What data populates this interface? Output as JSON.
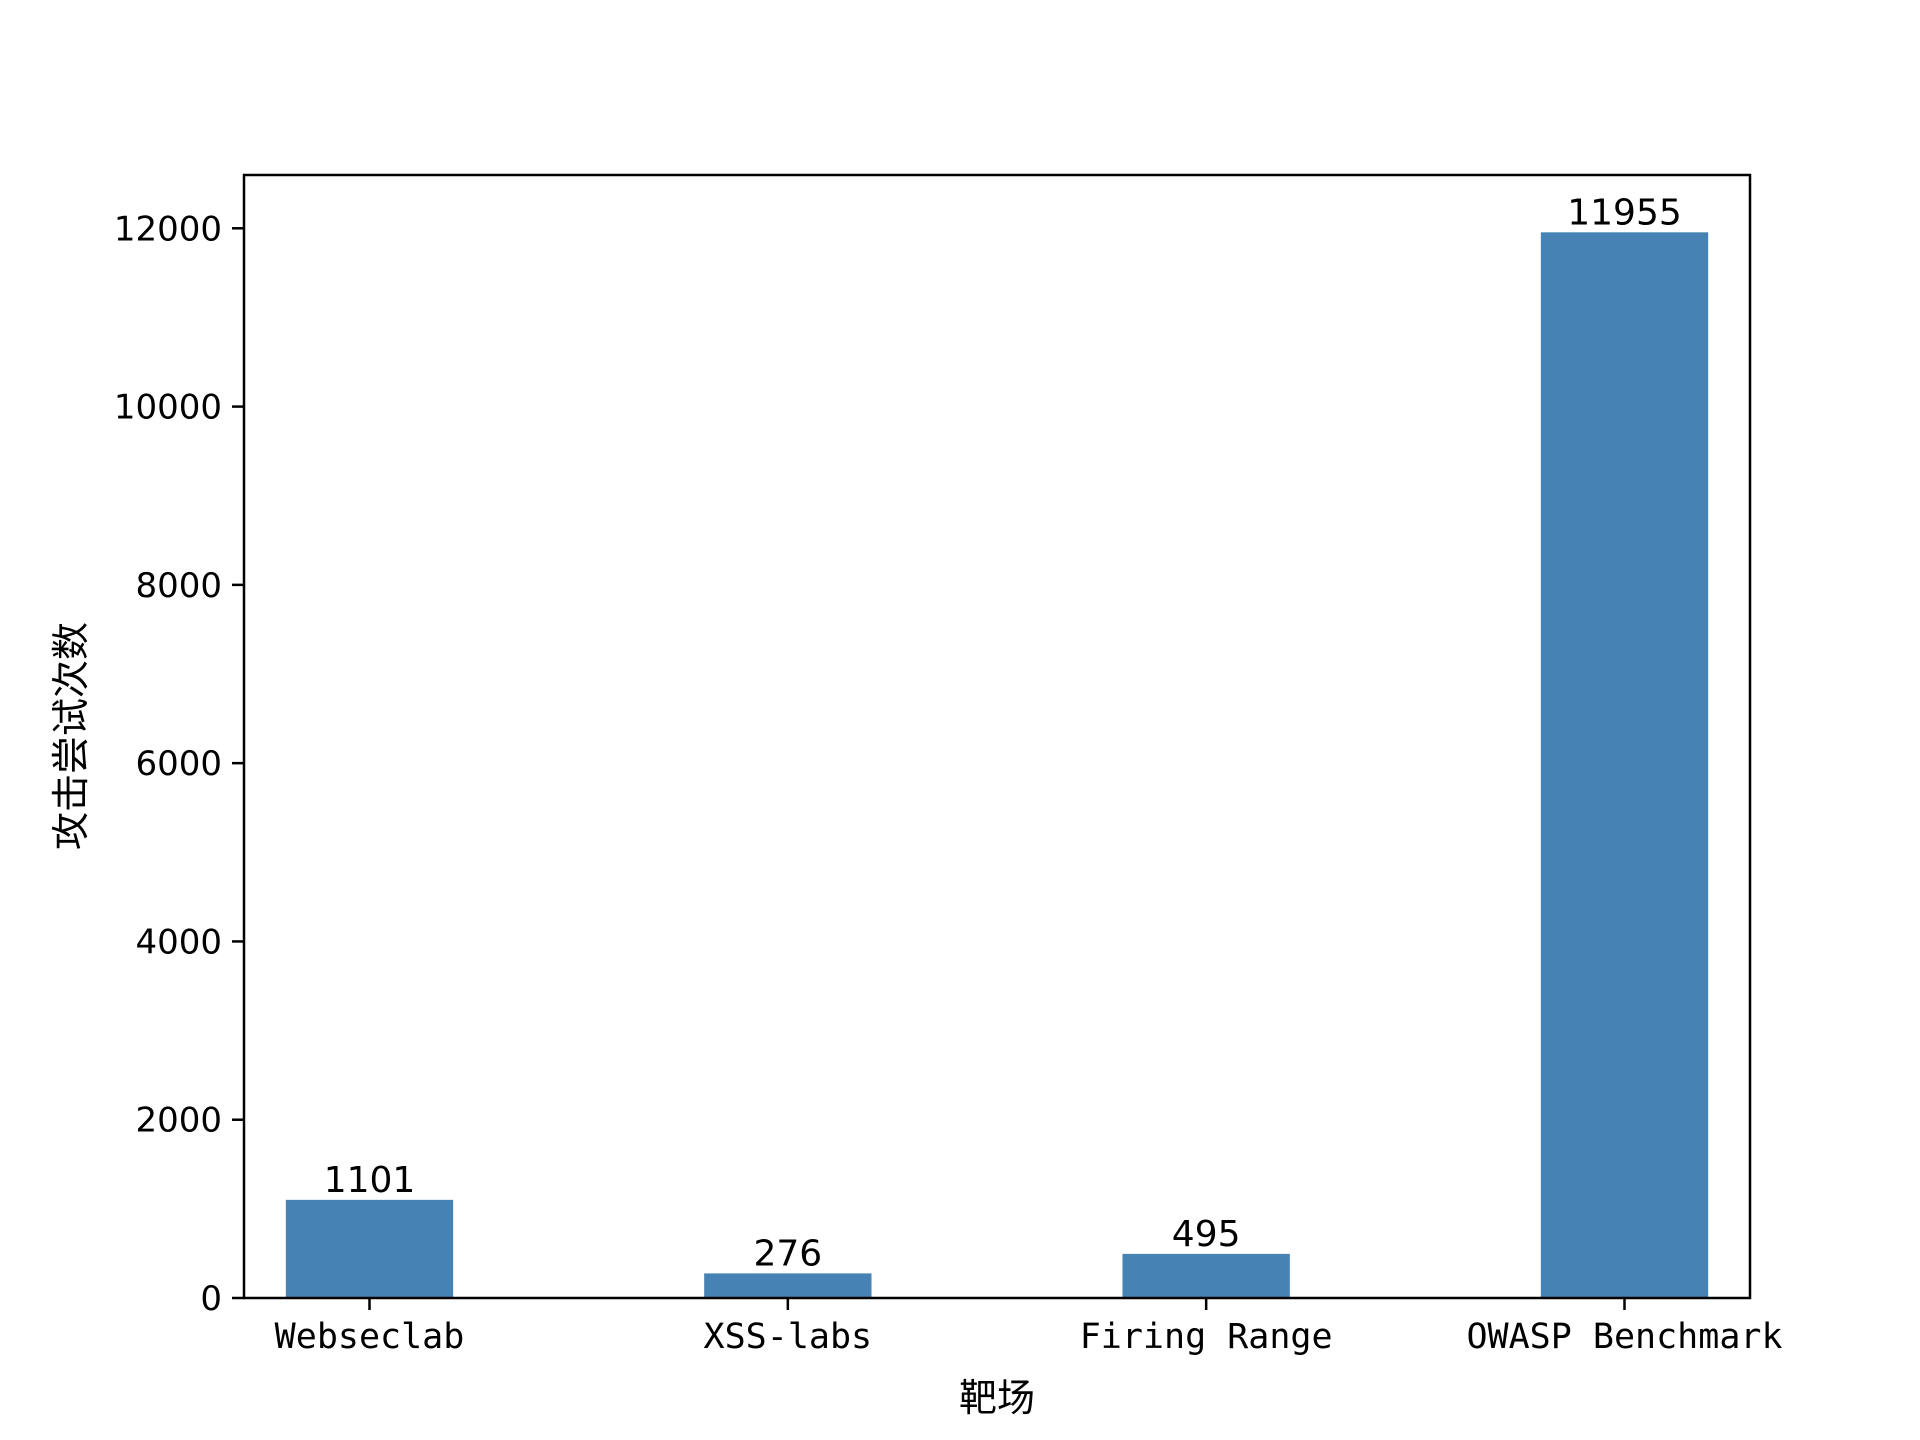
{
  "chart_data": {
    "type": "bar",
    "categories": [
      "Webseclab",
      "XSS-labs",
      "Firing Range",
      "OWASP Benchmark"
    ],
    "values": [
      1101,
      276,
      495,
      11955
    ],
    "data_labels": [
      "1101",
      "276",
      "495",
      "11955"
    ],
    "xlabel": "靶场",
    "ylabel": "攻击尝试次数",
    "ylim": [
      0,
      12598
    ],
    "yticks": [
      0,
      2000,
      4000,
      6000,
      8000,
      10000,
      12000
    ],
    "ytick_labels": [
      "0",
      "2000",
      "4000",
      "6000",
      "8000",
      "10000",
      "12000"
    ],
    "grid": false,
    "legend": "none",
    "bar_color": "#4682b4"
  }
}
